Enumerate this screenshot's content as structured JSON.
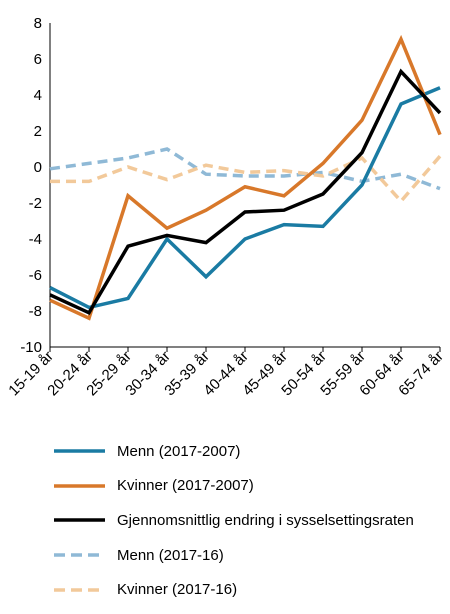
{
  "chart_data": {
    "type": "line",
    "categories": [
      "15-19 år",
      "20-24 år",
      "25-29 år",
      "30-34 år",
      "35-39 år",
      "40-44 år",
      "45-49 år",
      "50-54 år",
      "55-59 år",
      "60-64 år",
      "65-74 år"
    ],
    "ylim": [
      -10,
      8
    ],
    "yticks": [
      8,
      6,
      4,
      2,
      0,
      -2,
      -4,
      -6,
      -8,
      -10
    ],
    "grid": false,
    "legend_position": "bottom",
    "series": [
      {
        "name": "Menn (2017-2007)",
        "color": "#1a7ba3",
        "style": "solid",
        "values": [
          -6.7,
          -7.8,
          -7.3,
          -4.0,
          -6.1,
          -4.0,
          -3.2,
          -3.3,
          -1.0,
          3.5,
          4.4
        ]
      },
      {
        "name": "Kvinner (2017-2007)",
        "color": "#d8782a",
        "style": "solid",
        "values": [
          -7.4,
          -8.4,
          -1.6,
          -3.4,
          -2.4,
          -1.1,
          -1.6,
          0.2,
          2.6,
          7.1,
          1.8
        ]
      },
      {
        "name": "Gjennomsnittlig endring i sysselsettingsraten",
        "color": "#000000",
        "style": "solid",
        "values": [
          -7.1,
          -8.1,
          -4.4,
          -3.8,
          -4.2,
          -2.5,
          -2.4,
          -1.5,
          0.8,
          5.3,
          3.0
        ]
      },
      {
        "name": "Menn (2017-16)",
        "color": "#8fb9d6",
        "style": "dashed",
        "values": [
          -0.1,
          0.2,
          0.5,
          1.0,
          -0.4,
          -0.5,
          -0.5,
          -0.3,
          -0.8,
          -0.4,
          -1.2
        ]
      },
      {
        "name": "Kvinner (2017-16)",
        "color": "#f2c99a",
        "style": "dashed",
        "values": [
          -0.8,
          -0.8,
          0.0,
          -0.7,
          0.1,
          -0.3,
          -0.2,
          -0.5,
          0.5,
          -1.9,
          0.6
        ]
      }
    ]
  }
}
